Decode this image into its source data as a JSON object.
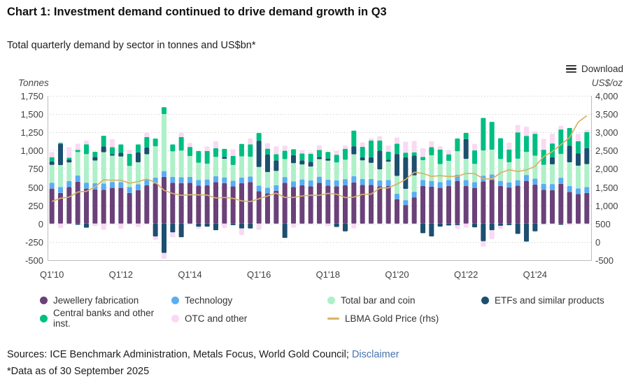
{
  "header": {
    "title": "Chart 1: Investment demand continued to drive demand growth in Q3",
    "subtitle": "Total quarterly demand by sector in tonnes and US$bn*",
    "download_label": "Download",
    "download_icon": "hamburger-lines"
  },
  "footer": {
    "sources_prefix": "Sources: ICE Benchmark Administration, Metals Focus, World Gold Council; ",
    "disclaimer_link": "Disclaimer",
    "data_asof": "*Data as of 30 September 2025"
  },
  "colors": {
    "jewellery": "#6A4179",
    "technology": "#5AAEF2",
    "bar_coin": "#AEF0C8",
    "etf": "#1D4F70",
    "central_banks": "#00BE82",
    "otc": "#F9D9F3",
    "gold_line": "#D9B266",
    "grid": "#c9c9c9",
    "axis_border": "#bdbdbd",
    "tick_text": "#3f3f3f",
    "link_blue": "#4a74ad"
  },
  "legend": {
    "items": [
      {
        "label": "Jewellery fabrication",
        "color": "#6A4179",
        "shape": "circle"
      },
      {
        "label": "Technology",
        "color": "#5AAEF2",
        "shape": "circle"
      },
      {
        "label": "Total bar and coin",
        "color": "#AEF0C8",
        "shape": "circle"
      },
      {
        "label": "ETFs and similar products",
        "color": "#1D4F70",
        "shape": "circle"
      },
      {
        "label": "Central banks and other inst.",
        "color": "#00BE82",
        "shape": "circle"
      },
      {
        "label": "OTC and other",
        "color": "#F9D9F3",
        "shape": "circle"
      },
      {
        "label": "LBMA Gold Price (rhs)",
        "color": "#D9B266",
        "shape": "line"
      }
    ]
  },
  "chart_data": {
    "type": "bar",
    "subtype": "stacked-column-with-line",
    "grid": "dotted-horizontal",
    "categories": [
      "Q1'10",
      "Q2'10",
      "Q3'10",
      "Q4'10",
      "Q1'11",
      "Q2'11",
      "Q3'11",
      "Q4'11",
      "Q1'12",
      "Q2'12",
      "Q3'12",
      "Q4'12",
      "Q1'13",
      "Q2'13",
      "Q3'13",
      "Q4'13",
      "Q1'14",
      "Q2'14",
      "Q3'14",
      "Q4'14",
      "Q1'15",
      "Q2'15",
      "Q3'15",
      "Q4'15",
      "Q1'16",
      "Q2'16",
      "Q3'16",
      "Q4'16",
      "Q1'17",
      "Q2'17",
      "Q3'17",
      "Q4'17",
      "Q1'18",
      "Q2'18",
      "Q3'18",
      "Q4'18",
      "Q1'19",
      "Q2'19",
      "Q3'19",
      "Q4'19",
      "Q1'20",
      "Q2'20",
      "Q3'20",
      "Q4'20",
      "Q1'21",
      "Q2'21",
      "Q3'21",
      "Q4'21",
      "Q1'22",
      "Q2'22",
      "Q3'22",
      "Q4'22",
      "Q1'23",
      "Q2'23",
      "Q3'23",
      "Q4'23",
      "Q1'24",
      "Q2'24",
      "Q3'24",
      "Q4'24",
      "Q1'25",
      "Q2'25",
      "Q3'25"
    ],
    "x_tick_labels": [
      "Q1'10",
      "Q1'12",
      "Q1'14",
      "Q1'16",
      "Q1'18",
      "Q1'20",
      "Q1'22",
      "Q1'24"
    ],
    "x_tick_indices": [
      0,
      8,
      16,
      24,
      32,
      40,
      48,
      56
    ],
    "left_axis": {
      "title": "Tonnes",
      "min": -500,
      "max": 1750,
      "tick_values": [
        1750,
        1500,
        1250,
        1000,
        750,
        500,
        250,
        0,
        -250,
        -500
      ],
      "tick_labels": [
        "1,750",
        "1,500",
        "1,250",
        "1,000",
        "750",
        "500",
        "250",
        "0",
        "-250",
        "-500"
      ]
    },
    "right_axis": {
      "title": "US$/oz",
      "min": -500,
      "max": 4000,
      "tick_values": [
        4000,
        3500,
        3000,
        2500,
        2000,
        1500,
        1000,
        500,
        0,
        -500
      ],
      "tick_labels": [
        "4,000",
        "3,500",
        "3,000",
        "2,500",
        "2,000",
        "1,500",
        "1,000",
        "500",
        "0",
        "-500"
      ]
    },
    "series": [
      {
        "name": "Jewellery fabrication",
        "color": "#6A4179",
        "values": [
          480,
          420,
          500,
          575,
          480,
          470,
          465,
          490,
          490,
          420,
          460,
          525,
          550,
          640,
          560,
          555,
          560,
          520,
          525,
          570,
          555,
          510,
          555,
          570,
          445,
          415,
          450,
          560,
          500,
          525,
          510,
          560,
          520,
          510,
          525,
          565,
          530,
          530,
          510,
          515,
          335,
          255,
          360,
          515,
          505,
          490,
          515,
          585,
          515,
          490,
          580,
          600,
          515,
          495,
          520,
          585,
          535,
          465,
          460,
          545,
          435,
          405,
          420
        ]
      },
      {
        "name": "Technology",
        "color": "#5AAEF2",
        "values": [
          80,
          82,
          83,
          85,
          82,
          84,
          83,
          81,
          80,
          80,
          80,
          81,
          80,
          80,
          80,
          81,
          80,
          79,
          80,
          79,
          78,
          78,
          77,
          76,
          76,
          76,
          77,
          78,
          79,
          80,
          82,
          83,
          82,
          83,
          85,
          84,
          82,
          82,
          83,
          84,
          74,
          67,
          77,
          84,
          81,
          80,
          84,
          86,
          82,
          78,
          77,
          73,
          70,
          70,
          75,
          82,
          80,
          81,
          83,
          84,
          80,
          79,
          80
        ]
      },
      {
        "name": "Total bar and coin",
        "color": "#AEF0C8",
        "values": [
          245,
          300,
          255,
          320,
          390,
          310,
          430,
          360,
          350,
          290,
          300,
          345,
          430,
          780,
          350,
          365,
          285,
          235,
          215,
          265,
          255,
          215,
          290,
          270,
          255,
          215,
          195,
          245,
          250,
          205,
          190,
          240,
          260,
          245,
          265,
          300,
          255,
          220,
          150,
          250,
          245,
          155,
          225,
          270,
          350,
          245,
          260,
          320,
          290,
          250,
          345,
          340,
          300,
          275,
          295,
          315,
          315,
          260,
          270,
          325,
          325,
          310,
          315
        ]
      },
      {
        "name": "ETFs and similar products",
        "color": "#1D4F70",
        "values": [
          45,
          290,
          40,
          -15,
          -55,
          50,
          80,
          20,
          50,
          0,
          135,
          90,
          -175,
          -400,
          -120,
          -185,
          0,
          -40,
          -40,
          -90,
          25,
          -20,
          -65,
          -65,
          360,
          240,
          145,
          -195,
          110,
          55,
          65,
          30,
          30,
          -45,
          -105,
          110,
          40,
          75,
          255,
          25,
          300,
          430,
          270,
          -130,
          -175,
          -40,
          -25,
          -20,
          270,
          -50,
          -240,
          -90,
          -30,
          -20,
          -140,
          -245,
          -105,
          -5,
          95,
          -15,
          225,
          170,
          220
        ]
      },
      {
        "name": "Central banks and other inst.",
        "color": "#00BE82",
        "values": [
          60,
          15,
          25,
          30,
          135,
          70,
          145,
          95,
          115,
          165,
          110,
          145,
          105,
          95,
          95,
          185,
          125,
          160,
          175,
          120,
          110,
          125,
          170,
          170,
          105,
          80,
          85,
          115,
          80,
          95,
          110,
          95,
          90,
          105,
          150,
          215,
          145,
          230,
          140,
          110,
          140,
          65,
          45,
          45,
          110,
          200,
          90,
          175,
          85,
          185,
          445,
          380,
          285,
          175,
          360,
          220,
          300,
          205,
          190,
          335,
          245,
          165,
          220
        ]
      },
      {
        "name": "OTC and other",
        "color": "#F9D9F3",
        "values": [
          70,
          -60,
          145,
          85,
          50,
          -35,
          -85,
          110,
          -70,
          55,
          -45,
          60,
          -45,
          -80,
          -65,
          60,
          55,
          -30,
          60,
          95,
          -60,
          90,
          -90,
          80,
          -85,
          75,
          105,
          70,
          -55,
          45,
          25,
          65,
          -35,
          55,
          45,
          -65,
          60,
          30,
          60,
          85,
          85,
          150,
          155,
          120,
          80,
          45,
          60,
          -50,
          -55,
          90,
          -75,
          -120,
          -40,
          95,
          100,
          125,
          35,
          150,
          135,
          50,
          -20,
          100,
          30
        ]
      }
    ],
    "line": {
      "name": "LBMA Gold Price (rhs)",
      "axis": "right",
      "color": "#D9B266",
      "values": [
        1110,
        1197,
        1227,
        1367,
        1386,
        1506,
        1702,
        1688,
        1691,
        1609,
        1652,
        1722,
        1632,
        1415,
        1326,
        1276,
        1293,
        1288,
        1282,
        1201,
        1218,
        1192,
        1124,
        1105,
        1182,
        1259,
        1334,
        1218,
        1219,
        1257,
        1278,
        1275,
        1329,
        1306,
        1213,
        1228,
        1304,
        1309,
        1474,
        1481,
        1583,
        1711,
        1909,
        1874,
        1794,
        1816,
        1790,
        1795,
        1877,
        1871,
        1729,
        1725,
        1890,
        1976,
        1928,
        1971,
        2070,
        2338,
        2474,
        2663,
        2860,
        3280,
        3457
      ]
    }
  }
}
